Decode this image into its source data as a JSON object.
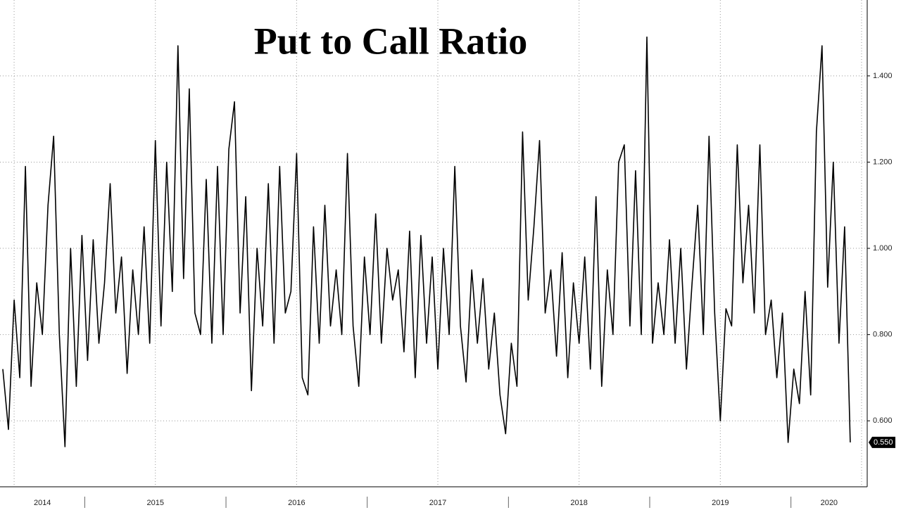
{
  "chart_data": {
    "type": "line",
    "title": "Put to Call Ratio",
    "x": [
      2014.42,
      2014.46,
      2014.5,
      2014.54,
      2014.58,
      2014.62,
      2014.66,
      2014.7,
      2014.74,
      2014.78,
      2014.82,
      2014.86,
      2014.9,
      2014.94,
      2014.98,
      2015.02,
      2015.06,
      2015.1,
      2015.14,
      2015.18,
      2015.22,
      2015.26,
      2015.3,
      2015.34,
      2015.38,
      2015.42,
      2015.46,
      2015.5,
      2015.54,
      2015.58,
      2015.62,
      2015.66,
      2015.7,
      2015.74,
      2015.78,
      2015.82,
      2015.86,
      2015.9,
      2015.94,
      2015.98,
      2016.02,
      2016.06,
      2016.1,
      2016.14,
      2016.18,
      2016.22,
      2016.26,
      2016.3,
      2016.34,
      2016.38,
      2016.42,
      2016.46,
      2016.5,
      2016.54,
      2016.58,
      2016.62,
      2016.66,
      2016.7,
      2016.74,
      2016.78,
      2016.82,
      2016.86,
      2016.9,
      2016.94,
      2016.98,
      2017.02,
      2017.06,
      2017.1,
      2017.14,
      2017.18,
      2017.22,
      2017.26,
      2017.3,
      2017.34,
      2017.38,
      2017.42,
      2017.46,
      2017.5,
      2017.54,
      2017.58,
      2017.62,
      2017.66,
      2017.7,
      2017.74,
      2017.78,
      2017.82,
      2017.86,
      2017.9,
      2017.94,
      2017.98,
      2018.02,
      2018.06,
      2018.1,
      2018.14,
      2018.18,
      2018.22,
      2018.26,
      2018.3,
      2018.34,
      2018.38,
      2018.42,
      2018.46,
      2018.5,
      2018.54,
      2018.58,
      2018.62,
      2018.66,
      2018.7,
      2018.74,
      2018.78,
      2018.82,
      2018.86,
      2018.9,
      2018.94,
      2018.98,
      2019.02,
      2019.06,
      2019.1,
      2019.14,
      2019.18,
      2019.22,
      2019.26,
      2019.3,
      2019.34,
      2019.38,
      2019.42,
      2019.46,
      2019.5,
      2019.54,
      2019.58,
      2019.62,
      2019.66,
      2019.7,
      2019.74,
      2019.78,
      2019.82,
      2019.86,
      2019.9,
      2019.94,
      2019.98,
      2020.02,
      2020.06,
      2020.1,
      2020.14,
      2020.18,
      2020.22,
      2020.26,
      2020.3,
      2020.34,
      2020.38,
      2020.42
    ],
    "series": [
      {
        "color": "#000000",
        "values": [
          0.72,
          0.58,
          0.88,
          0.7,
          1.19,
          0.68,
          0.92,
          0.8,
          1.1,
          1.26,
          0.8,
          0.54,
          1.0,
          0.68,
          1.03,
          0.74,
          1.02,
          0.78,
          0.92,
          1.15,
          0.85,
          0.98,
          0.71,
          0.95,
          0.8,
          1.05,
          0.78,
          1.25,
          0.82,
          1.2,
          0.9,
          1.47,
          0.93,
          1.37,
          0.85,
          0.8,
          1.16,
          0.78,
          1.19,
          0.8,
          1.23,
          1.34,
          0.85,
          1.12,
          0.67,
          1.0,
          0.82,
          1.15,
          0.78,
          1.19,
          0.85,
          0.9,
          1.22,
          0.7,
          0.66,
          1.05,
          0.78,
          1.1,
          0.82,
          0.95,
          0.8,
          1.22,
          0.82,
          0.68,
          0.98,
          0.8,
          1.08,
          0.78,
          1.0,
          0.88,
          0.95,
          0.76,
          1.04,
          0.7,
          1.03,
          0.78,
          0.98,
          0.72,
          1.0,
          0.8,
          1.19,
          0.82,
          0.69,
          0.95,
          0.78,
          0.93,
          0.72,
          0.85,
          0.66,
          0.57,
          0.78,
          0.68,
          1.27,
          0.88,
          1.05,
          1.25,
          0.85,
          0.95,
          0.75,
          0.99,
          0.7,
          0.92,
          0.78,
          0.98,
          0.72,
          1.12,
          0.68,
          0.95,
          0.8,
          1.2,
          1.24,
          0.82,
          1.18,
          0.8,
          1.49,
          0.78,
          0.92,
          0.8,
          1.02,
          0.78,
          1.0,
          0.72,
          0.92,
          1.1,
          0.8,
          1.26,
          0.85,
          0.6,
          0.86,
          0.82,
          1.24,
          0.92,
          1.1,
          0.85,
          1.24,
          0.8,
          0.88,
          0.7,
          0.85,
          0.55,
          0.72,
          0.64,
          0.9,
          0.66,
          1.27,
          1.47,
          0.91,
          1.2,
          0.78,
          1.05,
          0.55
        ],
        "value_labels": [
          null,
          null,
          null,
          null,
          null,
          null,
          null,
          null,
          null,
          null,
          null,
          null,
          null,
          null,
          null,
          null,
          null,
          null,
          null,
          null,
          null,
          null,
          null,
          null,
          null,
          null,
          null,
          null,
          null,
          null,
          null,
          null,
          null,
          null,
          null,
          null,
          null,
          null,
          null,
          null,
          null,
          null,
          null,
          null,
          null,
          null,
          null,
          null,
          null,
          null,
          null,
          null,
          null,
          null,
          null,
          null,
          null,
          null,
          null,
          null,
          null,
          null,
          null,
          null,
          null,
          null,
          null,
          null,
          null,
          null,
          null,
          null,
          null,
          null,
          null,
          null,
          null,
          null,
          null,
          null,
          null,
          null,
          null,
          null,
          null,
          null,
          null,
          null,
          null,
          null,
          null,
          null,
          null,
          null,
          null,
          null,
          null,
          null,
          null,
          null,
          null,
          null,
          null,
          null,
          null,
          null,
          null,
          null,
          null,
          null,
          null,
          null,
          null,
          null,
          null,
          null,
          null,
          null,
          null,
          null,
          null,
          null,
          null,
          null,
          null,
          null,
          null,
          null,
          null,
          null,
          null,
          null,
          null,
          null,
          null,
          null,
          null,
          null,
          null,
          null,
          null,
          null,
          null,
          null,
          null,
          null,
          null,
          null,
          null,
          null,
          "0.550"
        ]
      }
    ],
    "xlim": [
      2014.4,
      2020.54
    ],
    "xticks": [
      {
        "value": 2014.5,
        "label": "2014"
      },
      {
        "value": 2015.5,
        "label": "2015"
      },
      {
        "value": 2016.5,
        "label": "2016"
      },
      {
        "value": 2017.5,
        "label": "2017"
      },
      {
        "value": 2018.5,
        "label": "2018"
      },
      {
        "value": 2019.5,
        "label": "2019"
      },
      {
        "value": 2020.5,
        "label": "2020"
      }
    ],
    "ylim": [
      0.447,
      1.576
    ],
    "yticks": [
      {
        "value": 0.6,
        "label": "0.600"
      },
      {
        "value": 0.8,
        "label": "0.800"
      },
      {
        "value": 1.0,
        "label": "1.000"
      },
      {
        "value": 1.2,
        "label": "1.200"
      },
      {
        "value": 1.4,
        "label": "1.400"
      }
    ],
    "grid": true
  }
}
